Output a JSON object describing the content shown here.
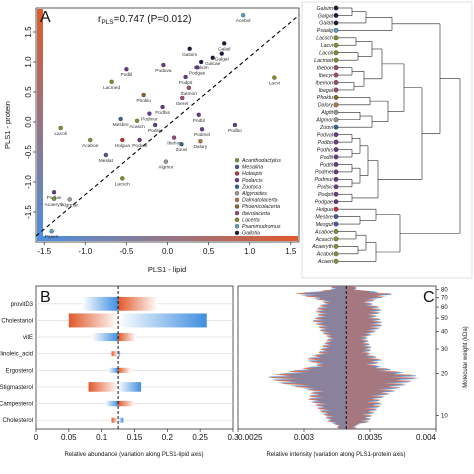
{
  "panel_letters": [
    "A",
    "B",
    "C"
  ],
  "chart_data": [
    {
      "type": "scatter",
      "panel": "A",
      "title_prefix": "r",
      "title_sub": "PLS",
      "title_rest": "=0.747 (P=0.012)",
      "xlabel": "PLS1 - lipid",
      "ylabel": "PLS1 - protein",
      "xlim": [
        -1.6,
        1.6
      ],
      "ylim": [
        -2.0,
        1.9
      ],
      "xticks": [
        -1.5,
        -1.0,
        -0.5,
        0.0,
        0.5,
        1.0,
        1.5
      ],
      "xtick_labels": [
        "-1.5",
        "-1.0",
        "-0.5",
        "0.0",
        "0.5",
        "1.0",
        "1.5"
      ],
      "yticks": [
        -1.5,
        -1.0,
        -0.5,
        0.0,
        0.5,
        1.0,
        1.5
      ],
      "ytick_labels": [
        "-1.5",
        "-1.0",
        "-0.5",
        "0.0",
        "0.5",
        "1.0",
        "1.5"
      ],
      "diagonal": true,
      "legend_position": "bottom-right",
      "legend": [
        {
          "name": "Acanthodactylus",
          "color": "#7a9a3a"
        },
        {
          "name": "Mesalina",
          "color": "#4a5a9a"
        },
        {
          "name": "Holaspis",
          "color": "#c03030"
        },
        {
          "name": "Podarcis",
          "color": "#6a3a8a"
        },
        {
          "name": "Zootoca",
          "color": "#2a6a8a"
        },
        {
          "name": "Algyroides",
          "color": "#9a9a9a"
        },
        {
          "name": "Dalmatolacerta",
          "color": "#b07a3a"
        },
        {
          "name": "Phoenicolacerta",
          "color": "#8a6a2a"
        },
        {
          "name": "Iberolacerta",
          "color": "#a04a7a"
        },
        {
          "name": "Lacerta",
          "color": "#8a8a2a"
        },
        {
          "name": "Psammodromus",
          "color": "#5aa0c8"
        },
        {
          "name": "Gallotia",
          "color": "#1a1a3a"
        }
      ],
      "points": [
        {
          "label": "Acebol",
          "x": 0.92,
          "y": 1.78,
          "color": "#5aa0c8"
        },
        {
          "label": "Galoim",
          "x": 0.27,
          "y": 1.22,
          "color": "#1a1a3a"
        },
        {
          "label": "Galatl",
          "x": 0.69,
          "y": 1.31,
          "color": "#1a1a3a"
        },
        {
          "label": "Galgal",
          "x": 0.66,
          "y": 1.14,
          "color": "#1a1a3a"
        },
        {
          "label": "Galcae",
          "x": 0.55,
          "y": 1.07,
          "color": "#1a1a3a"
        },
        {
          "label": "Galsim",
          "x": 0.41,
          "y": 1.0,
          "color": "#1a1a3a"
        },
        {
          "label": "Poduva",
          "x": -0.05,
          "y": 0.95,
          "color": "#6a3a8a"
        },
        {
          "label": "Podgae",
          "x": 0.36,
          "y": 0.91,
          "color": "#6a3a8a"
        },
        {
          "label": "Podpit",
          "x": 0.22,
          "y": 0.75,
          "color": "#6a3a8a"
        },
        {
          "label": "Podlil",
          "x": -0.5,
          "y": 0.88,
          "color": "#6a3a8a"
        },
        {
          "label": "Lacvi",
          "x": 1.3,
          "y": 0.74,
          "color": "#8a8a2a"
        },
        {
          "label": "Lacmed",
          "x": -0.68,
          "y": 0.67,
          "color": "#8a8a2a"
        },
        {
          "label": "Ibemon",
          "x": 0.26,
          "y": 0.57,
          "color": "#a04a7a"
        },
        {
          "label": "Phoklu",
          "x": -0.29,
          "y": 0.45,
          "color": "#8a6a2a"
        },
        {
          "label": "Iberet",
          "x": 0.18,
          "y": 0.4,
          "color": "#a04a7a"
        },
        {
          "label": "Podhis",
          "x": -0.06,
          "y": 0.25,
          "color": "#6a3a8a"
        },
        {
          "label": "Podmur",
          "x": -0.22,
          "y": 0.14,
          "color": "#6a3a8a"
        },
        {
          "label": "Podtil",
          "x": 0.38,
          "y": 0.12,
          "color": "#6a3a8a"
        },
        {
          "label": "Mesbre",
          "x": -0.57,
          "y": 0.05,
          "color": "#4a5a9a"
        },
        {
          "label": "Acasch",
          "x": -0.37,
          "y": 0.02,
          "color": "#7a9a3a"
        },
        {
          "label": "Podsic",
          "x": -0.15,
          "y": -0.05,
          "color": "#6a3a8a"
        },
        {
          "label": "Podmel",
          "x": 0.42,
          "y": -0.12,
          "color": "#6a3a8a"
        },
        {
          "label": "Podbo",
          "x": 0.82,
          "y": -0.05,
          "color": "#6a3a8a"
        },
        {
          "label": "Lacoli",
          "x": -1.3,
          "y": -0.1,
          "color": "#8a8a2a"
        },
        {
          "label": "Acaboe",
          "x": -0.94,
          "y": -0.3,
          "color": "#7a9a3a"
        },
        {
          "label": "Holgua",
          "x": -0.55,
          "y": -0.3,
          "color": "#c03030"
        },
        {
          "label": "Podval",
          "x": -0.34,
          "y": -0.3,
          "color": "#6a3a8a"
        },
        {
          "label": "Ibehor",
          "x": 0.08,
          "y": -0.26,
          "color": "#a04a7a"
        },
        {
          "label": "Dalory",
          "x": 0.4,
          "y": -0.32,
          "color": "#b07a3a"
        },
        {
          "label": "Zoovi",
          "x": 0.17,
          "y": -0.37,
          "color": "#2a6a8a"
        },
        {
          "label": "Meslat",
          "x": -0.75,
          "y": -0.55,
          "color": "#4a5a9a"
        },
        {
          "label": "Algmor",
          "x": -0.02,
          "y": -0.66,
          "color": "#9a9a9a"
        },
        {
          "label": "Lacsch",
          "x": -0.55,
          "y": -0.94,
          "color": "#8a8a2a"
        },
        {
          "label": "Podlae",
          "x": -1.38,
          "y": -1.17,
          "color": "#6a3a8a"
        },
        {
          "label": "Acaeryth",
          "x": -1.38,
          "y": -1.28,
          "color": "#7a9a3a"
        },
        {
          "label": "Algrmar",
          "x": -1.19,
          "y": -1.29,
          "color": "#9a9a9a"
        },
        {
          "label": "Psaeri",
          "x": -1.41,
          "y": -1.82,
          "color": "#5aa0c8"
        }
      ],
      "tree_tips": [
        {
          "label": "Galsim",
          "color": "#1a1a3a"
        },
        {
          "label": "Galgal",
          "color": "#1a1a3a"
        },
        {
          "label": "Galatl",
          "color": "#1a1a3a"
        },
        {
          "label": "Psaalg",
          "color": "#5aa0c8"
        },
        {
          "label": "Lacsch",
          "color": "#8a8a2a"
        },
        {
          "label": "Lacvi",
          "color": "#8a8a2a"
        },
        {
          "label": "Lacoli",
          "color": "#8a8a2a"
        },
        {
          "label": "Lacmed",
          "color": "#8a8a2a"
        },
        {
          "label": "Ibebon",
          "color": "#a04a7a"
        },
        {
          "label": "Ibecyr",
          "color": "#a04a7a"
        },
        {
          "label": "Ibemon",
          "color": "#a04a7a"
        },
        {
          "label": "Ibegal",
          "color": "#a04a7a"
        },
        {
          "label": "Phoklu",
          "color": "#8a6a2a"
        },
        {
          "label": "Dalory",
          "color": "#b07a3a"
        },
        {
          "label": "Algfit",
          "color": "#9a9a9a"
        },
        {
          "label": "Algmor",
          "color": "#9a9a9a"
        },
        {
          "label": "Zoovi",
          "color": "#2a6a8a"
        },
        {
          "label": "Podval",
          "color": "#6a3a8a"
        },
        {
          "label": "Podbo",
          "color": "#6a3a8a"
        },
        {
          "label": "Podhis",
          "color": "#6a3a8a"
        },
        {
          "label": "Podlil",
          "color": "#6a3a8a"
        },
        {
          "label": "Podtil",
          "color": "#6a3a8a"
        },
        {
          "label": "Podmel",
          "color": "#6a3a8a"
        },
        {
          "label": "Podmur",
          "color": "#6a3a8a"
        },
        {
          "label": "Podsic",
          "color": "#6a3a8a"
        },
        {
          "label": "Podpit",
          "color": "#6a3a8a"
        },
        {
          "label": "Podgae",
          "color": "#6a3a8a"
        },
        {
          "label": "Holgua",
          "color": "#c03030"
        },
        {
          "label": "Mesbre",
          "color": "#4a5a9a"
        },
        {
          "label": "Mesguf",
          "color": "#4a5a9a"
        },
        {
          "label": "Acaboe",
          "color": "#7a9a3a"
        },
        {
          "label": "Acasch",
          "color": "#7a9a3a"
        },
        {
          "label": "Acaeryth",
          "color": "#7a9a3a"
        },
        {
          "label": "Acabol",
          "color": "#7a9a3a"
        },
        {
          "label": "Acaeri",
          "color": "#7a9a3a"
        }
      ]
    },
    {
      "type": "bar",
      "panel": "B",
      "xlabel": "Relative abundance (variation along PLS1-lipid axis)",
      "xlim": [
        0.0,
        0.3
      ],
      "xticks": [
        0.0,
        0.05,
        0.1,
        0.15,
        0.2,
        0.25,
        0.3
      ],
      "xtick_labels": [
        "0",
        "0.05",
        "0.1",
        "0.15",
        "0.2",
        "0.25",
        "0.3"
      ],
      "reference_value": 0.125,
      "categories": [
        "provitD3",
        "Cholestanol",
        "vitE",
        "linoleic_acid",
        "Ergosterol",
        "Stigmasterol",
        "Campesterol",
        "Cholesterol"
      ],
      "ranges": [
        {
          "category": "provitD3",
          "low": 0.07,
          "high": 0.185
        },
        {
          "category": "Cholestanol",
          "low": 0.05,
          "high": 0.26
        },
        {
          "category": "vitE",
          "low": 0.085,
          "high": 0.152
        },
        {
          "category": "linoleic_acid",
          "low": 0.115,
          "high": 0.128
        },
        {
          "category": "Ergosterol",
          "low": 0.11,
          "high": 0.145
        },
        {
          "category": "Stigmasterol",
          "low": 0.08,
          "high": 0.16
        },
        {
          "category": "Campesterol",
          "low": 0.105,
          "high": 0.15
        },
        {
          "category": "Cholesterol",
          "low": 0.115,
          "high": 0.133
        }
      ]
    },
    {
      "type": "area",
      "panel": "C",
      "xlabel": "Relative intensity (variation along PLS1-protein axis)",
      "ylabel": "Molecular weight (kDa)",
      "xlim": [
        0.0025,
        0.004
      ],
      "xticks": [
        0.0025,
        0.003,
        0.0035,
        0.004
      ],
      "xtick_labels": [
        "0.0025",
        "0.003",
        "0.0035",
        "0.004"
      ],
      "reference_value": 0.00332,
      "ylim_log": [
        8,
        85
      ],
      "yticks": [
        10,
        20,
        30,
        40,
        50,
        60,
        70,
        80
      ],
      "ytick_labels": [
        "10",
        "20",
        "30",
        "40",
        "50",
        "60",
        "70",
        "80"
      ],
      "profile_kDa": [
        8.5,
        9,
        10,
        11,
        12,
        13,
        15,
        17,
        19,
        21,
        23,
        25,
        28,
        30,
        33,
        36,
        40,
        44,
        48,
        52,
        56,
        60,
        65,
        70,
        75,
        80
      ],
      "profile_low": [
        0.00325,
        0.00318,
        0.00315,
        0.0031,
        0.00308,
        0.00302,
        0.00305,
        0.0028,
        0.0027,
        0.0029,
        0.0031,
        0.003,
        0.0031,
        0.00312,
        0.00315,
        0.00318,
        0.00312,
        0.0031,
        0.00305,
        0.0031,
        0.00308,
        0.0031,
        0.00315,
        0.00305,
        0.0029,
        0.0032
      ],
      "profile_high": [
        0.0034,
        0.0035,
        0.00352,
        0.00356,
        0.0036,
        0.00358,
        0.0037,
        0.0038,
        0.0039,
        0.0037,
        0.00355,
        0.0036,
        0.0035,
        0.00352,
        0.0035,
        0.00348,
        0.00355,
        0.0036,
        0.0036,
        0.00355,
        0.0036,
        0.00358,
        0.0035,
        0.0036,
        0.0037,
        0.0034
      ]
    }
  ]
}
